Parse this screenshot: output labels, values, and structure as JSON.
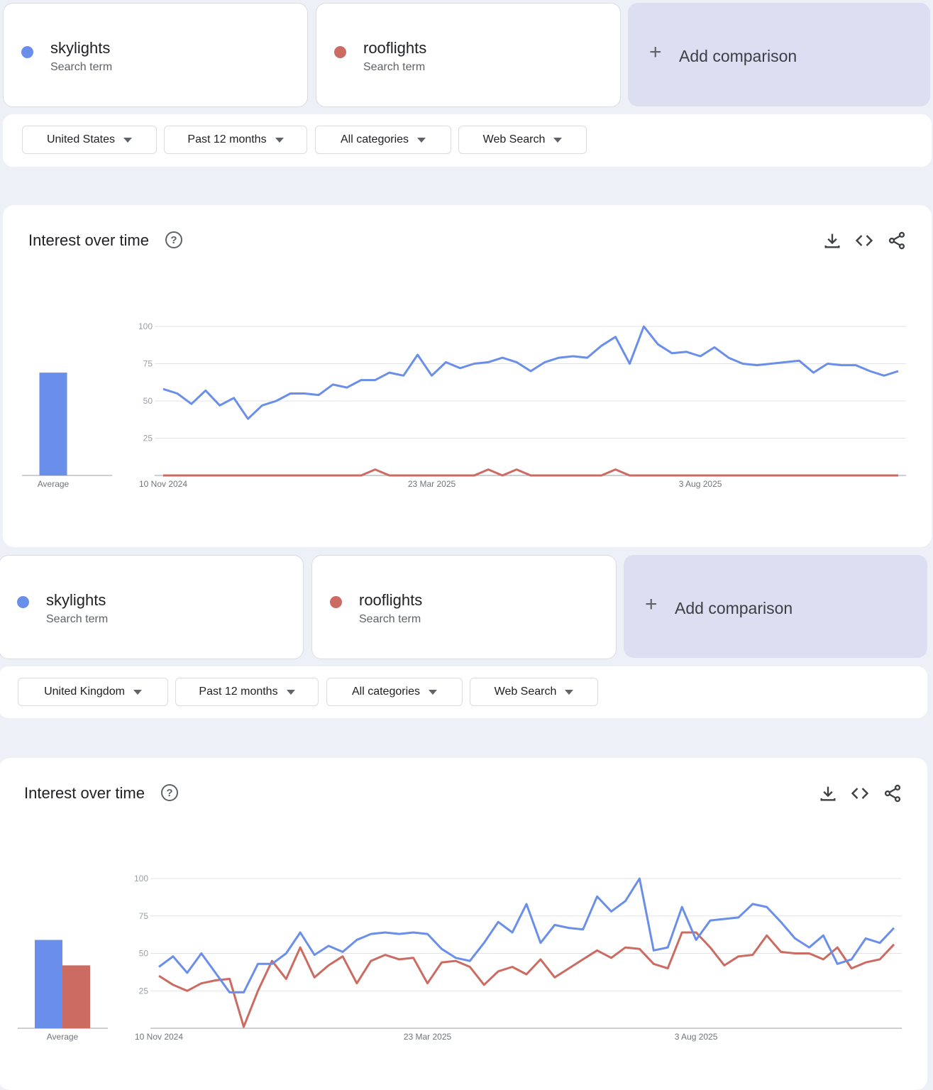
{
  "colors": {
    "skylights": "#6a8fea",
    "rooflights": "#cb6b62"
  },
  "panels": [
    {
      "terms": [
        {
          "name": "skylights",
          "sub": "Search term"
        },
        {
          "name": "rooflights",
          "sub": "Search term"
        }
      ],
      "add_label": "Add comparison",
      "filters": {
        "region": "United States",
        "time": "Past 12 months",
        "category": "All categories",
        "search_type": "Web Search"
      },
      "chart_title": "Interest over time",
      "chart_data": {
        "type": "line",
        "title": "Interest over time",
        "y_ticks": [
          25,
          50,
          75,
          100
        ],
        "ylim": [
          0,
          100
        ],
        "x_tick_labels": [
          "10 Nov 2024",
          "23 Mar 2025",
          "3 Aug 2025"
        ],
        "average_label": "Average",
        "averages": [
          69,
          0
        ],
        "series": [
          {
            "name": "skylights",
            "values": [
              58,
              55,
              48,
              57,
              47,
              52,
              38,
              47,
              50,
              55,
              55,
              54,
              61,
              59,
              64,
              64,
              69,
              67,
              81,
              67,
              76,
              72,
              75,
              76,
              79,
              76,
              70,
              76,
              79,
              80,
              79,
              87,
              93,
              75,
              100,
              88,
              82,
              83,
              80,
              86,
              79,
              75,
              74,
              75,
              76,
              77,
              69,
              75,
              74,
              74,
              70,
              67,
              70
            ]
          },
          {
            "name": "rooflights",
            "values": [
              0,
              0,
              0,
              0,
              0,
              0,
              0,
              0,
              0,
              0,
              0,
              0,
              0,
              0,
              0,
              4,
              0,
              0,
              0,
              0,
              0,
              0,
              0,
              4,
              0,
              4,
              0,
              0,
              0,
              0,
              0,
              0,
              4,
              0,
              0,
              0,
              0,
              0,
              0,
              0,
              0,
              0,
              0,
              0,
              0,
              0,
              0,
              0,
              0,
              0,
              0,
              0,
              0
            ]
          }
        ]
      }
    },
    {
      "terms": [
        {
          "name": "skylights",
          "sub": "Search term"
        },
        {
          "name": "rooflights",
          "sub": "Search term"
        }
      ],
      "add_label": "Add comparison",
      "filters": {
        "region": "United Kingdom",
        "time": "Past 12 months",
        "category": "All categories",
        "search_type": "Web Search"
      },
      "chart_title": "Interest over time",
      "chart_data": {
        "type": "line",
        "title": "Interest over time",
        "y_ticks": [
          25,
          50,
          75,
          100
        ],
        "ylim": [
          0,
          100
        ],
        "x_tick_labels": [
          "10 Nov 2024",
          "23 Mar 2025",
          "3 Aug 2025"
        ],
        "average_label": "Average",
        "averages": [
          59,
          42
        ],
        "series": [
          {
            "name": "skylights",
            "values": [
              41,
              48,
              37,
              50,
              37,
              24,
              24,
              43,
              43,
              50,
              64,
              49,
              55,
              51,
              59,
              63,
              64,
              63,
              64,
              63,
              53,
              47,
              45,
              57,
              71,
              64,
              83,
              57,
              69,
              67,
              66,
              88,
              78,
              85,
              100,
              52,
              54,
              81,
              59,
              72,
              73,
              74,
              83,
              81,
              71,
              60,
              54,
              62,
              43,
              46,
              60,
              57,
              67
            ]
          },
          {
            "name": "rooflights",
            "values": [
              35,
              29,
              25,
              30,
              32,
              33,
              1,
              25,
              45,
              33,
              54,
              34,
              42,
              48,
              30,
              45,
              49,
              46,
              47,
              30,
              44,
              45,
              41,
              29,
              38,
              41,
              36,
              46,
              34,
              40,
              46,
              52,
              47,
              54,
              53,
              43,
              40,
              64,
              64,
              54,
              42,
              48,
              49,
              62,
              51,
              50,
              50,
              46,
              54,
              40,
              44,
              46,
              56
            ]
          }
        ]
      }
    }
  ]
}
